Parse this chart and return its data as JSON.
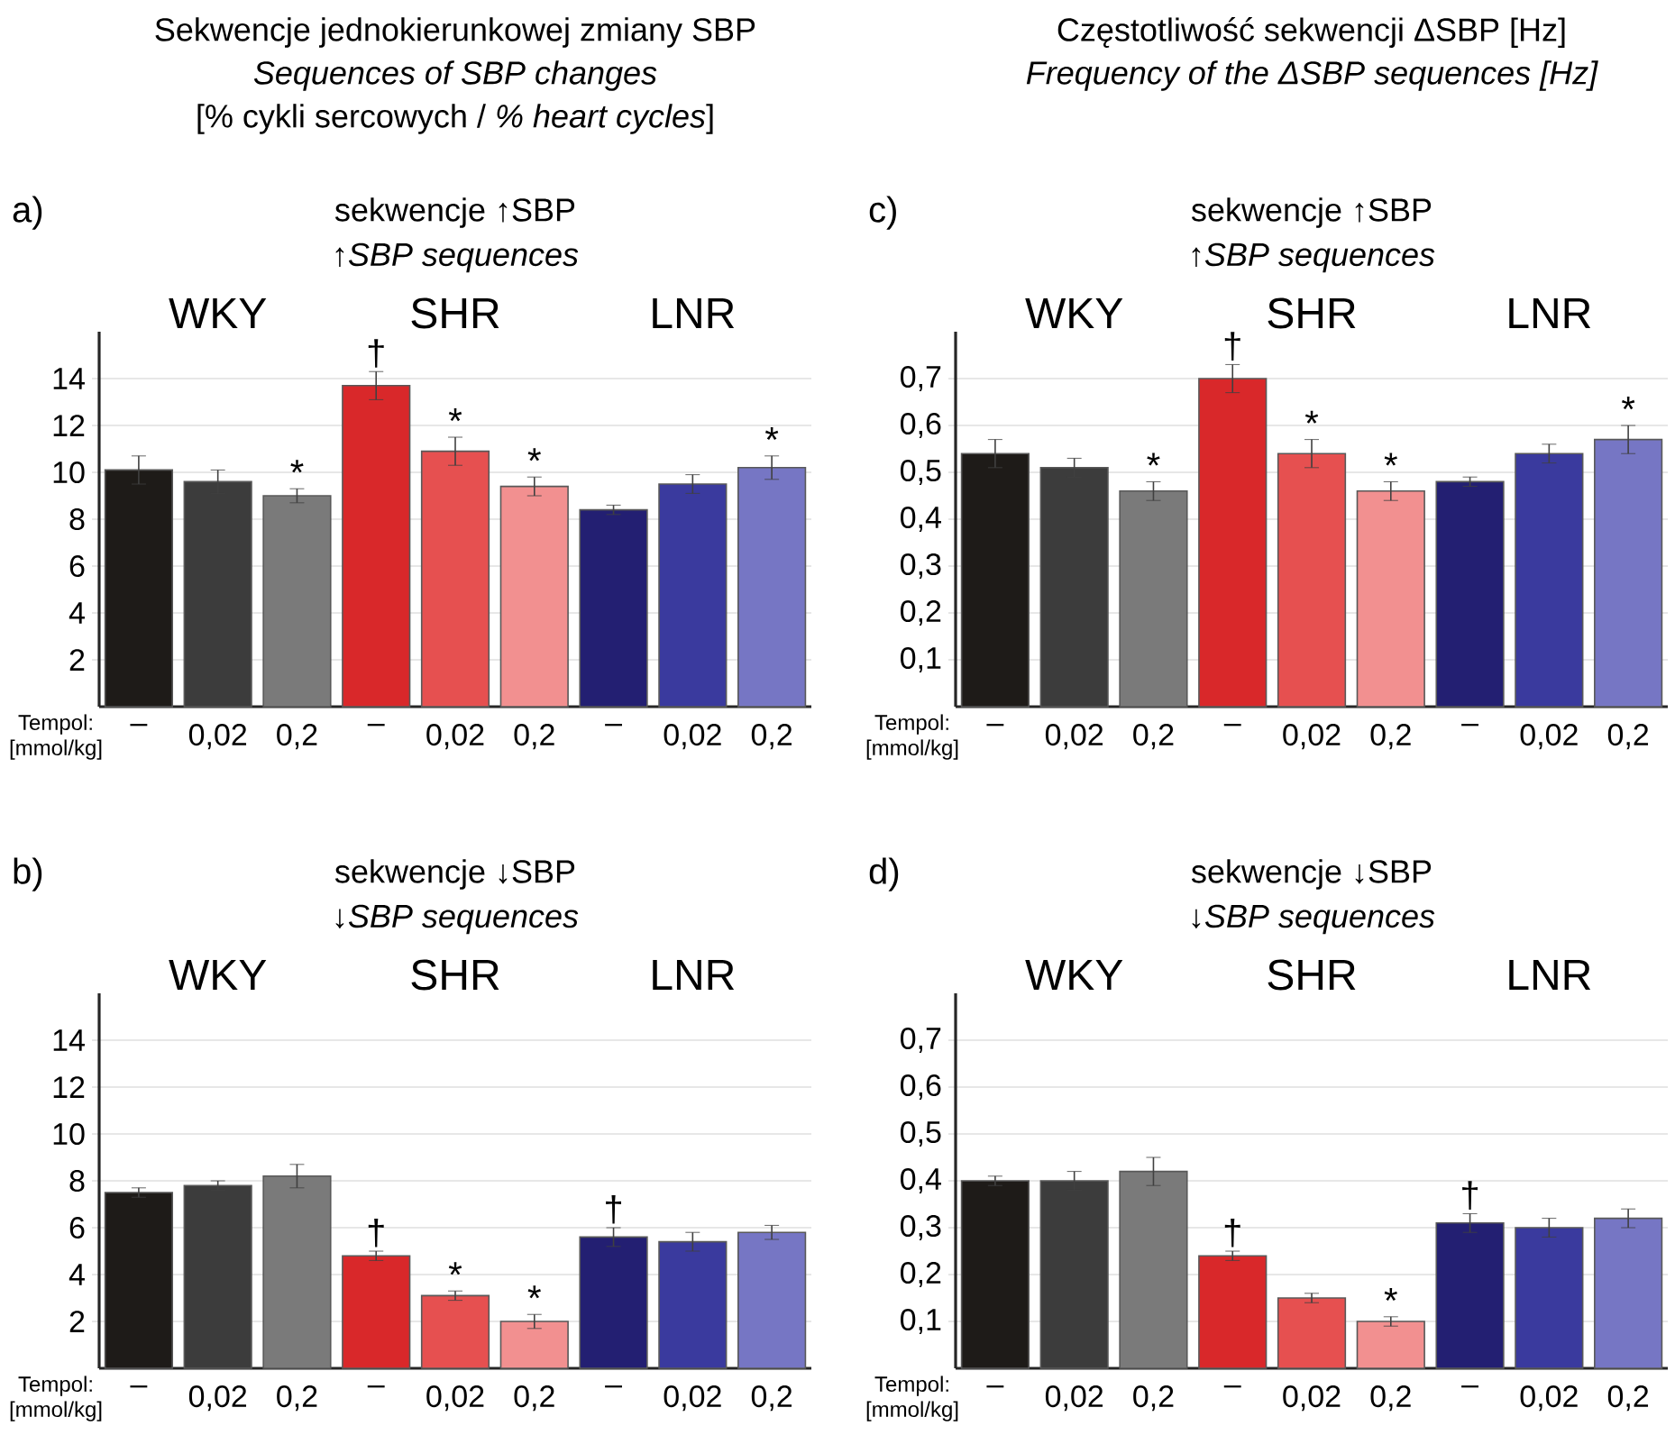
{
  "chart_data": [
    {
      "type": "bar",
      "title": "a)",
      "subtitle": "sekwencje ↑SBP",
      "xlabel": "Tempol: [mmol/kg]",
      "annotations": [
        "Sekwencje jednokierunkowej zmiany SBP",
        "Sequences of SBP changes",
        "[% cykli sercowych / *% heart cycles*]",
        "↑SBP sequences",
        "WKY",
        "SHR",
        "LNR"
      ],
      "categories": [
        "–",
        "0,02",
        "0,2",
        "–",
        "0,02",
        "0,2",
        "–",
        "0,02",
        "0,2"
      ],
      "values": [
        10.1,
        9.6,
        9.0,
        13.7,
        10.9,
        9.4,
        8.4,
        9.5,
        10.2
      ],
      "errors": [
        0.6,
        0.5,
        0.3,
        0.6,
        0.6,
        0.4,
        0.2,
        0.4,
        0.5
      ],
      "value_labels": [
        null,
        null,
        "*",
        "†",
        "*",
        "*",
        null,
        null,
        "*"
      ],
      "colors": [
        "#1e1b18",
        "#3c3c3c",
        "#7a7a7a",
        "#d9282a",
        "#e65050",
        "#f29090",
        "#231f72",
        "#3a3a9e",
        "#7676c4"
      ],
      "ylim": [
        0,
        16
      ],
      "yticks": [
        2,
        4,
        6,
        8,
        10,
        12,
        14
      ],
      "grid": "y"
    },
    {
      "type": "bar",
      "title": "c)",
      "subtitle": "sekwencje ↑SBP",
      "xlabel": "Tempol: [mmol/kg]",
      "annotations": [
        "Częstotliwość sekwencji ΔSBP [Hz]",
        "Frequency of the ΔSBP sequences [Hz]",
        "↑SBP sequences",
        "WKY",
        "SHR",
        "LNR"
      ],
      "categories": [
        "–",
        "0,02",
        "0,2",
        "–",
        "0,02",
        "0,2",
        "–",
        "0,02",
        "0,2"
      ],
      "values": [
        0.54,
        0.51,
        0.46,
        0.7,
        0.54,
        0.46,
        0.48,
        0.54,
        0.57
      ],
      "errors": [
        0.03,
        0.02,
        0.02,
        0.03,
        0.03,
        0.02,
        0.01,
        0.02,
        0.03
      ],
      "value_labels": [
        null,
        null,
        "*",
        "†",
        "*",
        "*",
        null,
        null,
        "*"
      ],
      "colors": [
        "#1e1b18",
        "#3c3c3c",
        "#7a7a7a",
        "#d9282a",
        "#e65050",
        "#f29090",
        "#231f72",
        "#3a3a9e",
        "#7676c4"
      ],
      "ylim": [
        0,
        0.8
      ],
      "yticks": [
        {
          "value": 0.1,
          "label": "0,1"
        },
        {
          "value": 0.2,
          "label": "0,2"
        },
        {
          "value": 0.3,
          "label": "0,3"
        },
        {
          "value": 0.4,
          "label": "0,4"
        },
        {
          "value": 0.5,
          "label": "0,5"
        },
        {
          "value": 0.6,
          "label": "0,6"
        },
        {
          "value": 0.7,
          "label": "0,7"
        }
      ],
      "grid": "y"
    },
    {
      "type": "bar",
      "title": "b)",
      "subtitle": "sekwencje ↓SBP",
      "xlabel": "Tempol: [mmol/kg]",
      "annotations": [
        "↓SBP sequences",
        "WKY",
        "SHR",
        "LNR"
      ],
      "categories": [
        "–",
        "0,02",
        "0,2",
        "–",
        "0,02",
        "0,2",
        "–",
        "0,02",
        "0,2"
      ],
      "values": [
        7.5,
        7.8,
        8.2,
        4.8,
        3.1,
        2.0,
        5.6,
        5.4,
        5.8
      ],
      "errors": [
        0.2,
        0.2,
        0.5,
        0.2,
        0.2,
        0.3,
        0.4,
        0.4,
        0.3
      ],
      "value_labels": [
        null,
        null,
        null,
        "†",
        "*",
        "*",
        "†",
        null,
        null
      ],
      "colors": [
        "#1e1b18",
        "#3c3c3c",
        "#7a7a7a",
        "#d9282a",
        "#e65050",
        "#f29090",
        "#231f72",
        "#3a3a9e",
        "#7676c4"
      ],
      "ylim": [
        0,
        16
      ],
      "yticks": [
        2,
        4,
        6,
        8,
        10,
        12,
        14
      ],
      "grid": "y"
    },
    {
      "type": "bar",
      "title": "d)",
      "subtitle": "sekwencje ↓SBP",
      "xlabel": "Tempol: [mmol/kg]",
      "annotations": [
        "↓SBP sequences",
        "WKY",
        "SHR",
        "LNR"
      ],
      "categories": [
        "–",
        "0,02",
        "0,2",
        "–",
        "0,02",
        "0,2",
        "–",
        "0,02",
        "0,2"
      ],
      "values": [
        0.4,
        0.4,
        0.42,
        0.24,
        0.15,
        0.1,
        0.31,
        0.3,
        0.32
      ],
      "errors": [
        0.01,
        0.02,
        0.03,
        0.01,
        0.01,
        0.01,
        0.02,
        0.02,
        0.02
      ],
      "value_labels": [
        null,
        null,
        null,
        "†",
        null,
        "*",
        "†",
        null,
        null
      ],
      "colors": [
        "#1e1b18",
        "#3c3c3c",
        "#7a7a7a",
        "#d9282a",
        "#e65050",
        "#f29090",
        "#231f72",
        "#3a3a9e",
        "#7676c4"
      ],
      "ylim": [
        0,
        0.8
      ],
      "yticks": [
        {
          "value": 0.1,
          "label": "0,1"
        },
        {
          "value": 0.2,
          "label": "0,2"
        },
        {
          "value": 0.3,
          "label": "0,3"
        },
        {
          "value": 0.4,
          "label": "0,4"
        },
        {
          "value": 0.5,
          "label": "0,5"
        },
        {
          "value": 0.6,
          "label": "0,6"
        },
        {
          "value": 0.7,
          "label": "0,7"
        }
      ],
      "grid": "y"
    }
  ]
}
